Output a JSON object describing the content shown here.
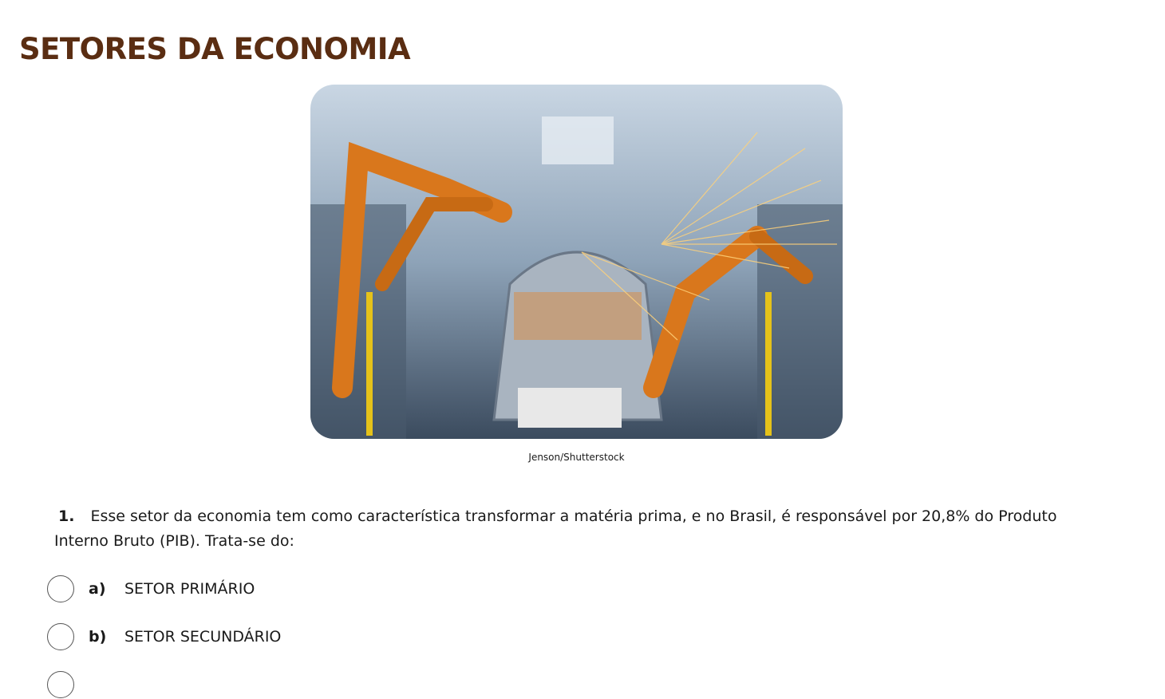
{
  "header": {
    "title": "SETORES DA ECONOMIA"
  },
  "image": {
    "credit": "Jenson/Shutterstock"
  },
  "question": {
    "number": "1.",
    "text": "Esse setor da economia tem como característica transformar a matéria prima, e no Brasil, é responsável por 20,8% do Produto Interno Bruto (PIB). Trata-se do:"
  },
  "options": [
    {
      "letter": "a)",
      "text": "SETOR PRIMÁRIO"
    },
    {
      "letter": "b)",
      "text": "SETOR SECUNDÁRIO"
    }
  ]
}
